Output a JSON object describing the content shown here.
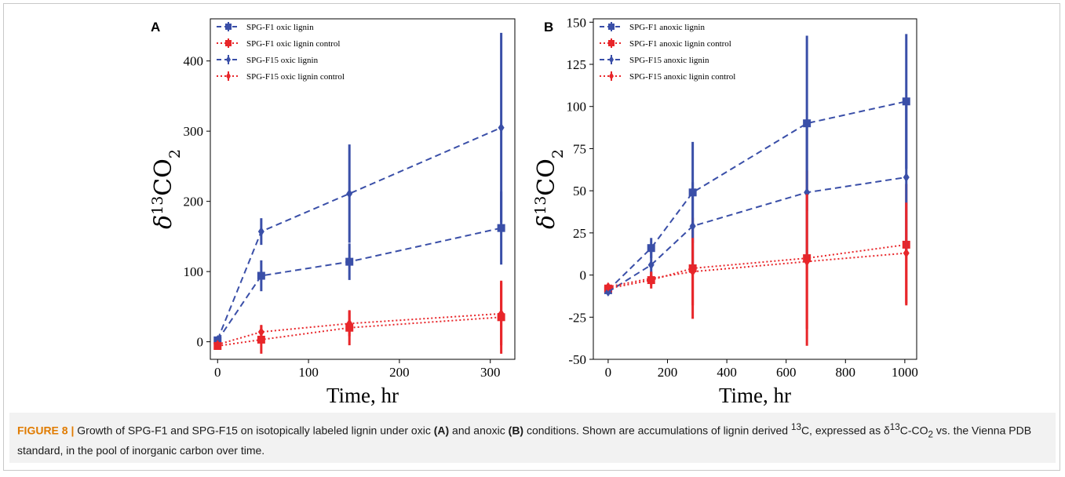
{
  "caption": {
    "label": "FIGURE 8 |",
    "text_1": " Growth of SPG-F1 and SPG-F15 on isotopically labeled lignin under oxic ",
    "bold_a": "(A)",
    "text_2": " and anoxic ",
    "bold_b": "(B)",
    "text_3": " conditions. Shown are accumulations of lignin derived ",
    "sup_13": "13",
    "text_4": "C, expressed as δ",
    "text_5": "C-CO",
    "sub_2": "2",
    "text_6": " vs. the Vienna PDB standard, in the pool of inorganic carbon over time."
  },
  "colors": {
    "blue": "#3a4fa8",
    "red": "#e8262a",
    "caption_accent": "#e07b00"
  },
  "chart_data": [
    {
      "panel_label": "A",
      "type": "line",
      "xlabel": "Time, hr",
      "ylabel": "δ13CO2",
      "xlim": [
        -8,
        327
      ],
      "ylim": [
        -25,
        460
      ],
      "xticks": [
        0,
        100,
        200,
        300
      ],
      "yticks": [
        0,
        100,
        200,
        300,
        400
      ],
      "legend_position": "top-left",
      "series": [
        {
          "name": "SPG-F1 oxic lignin",
          "color": "#3a4fa8",
          "line": "dashed",
          "marker": "square",
          "x": [
            0,
            48,
            145,
            312
          ],
          "y": [
            2,
            94,
            114,
            162
          ],
          "err": [
            4,
            22,
            26,
            52
          ]
        },
        {
          "name": "SPG-F1 oxic lignin control",
          "color": "#e8262a",
          "line": "dotted",
          "marker": "square",
          "x": [
            0,
            48,
            145,
            312
          ],
          "y": [
            -6,
            3,
            20,
            35
          ],
          "err": [
            3,
            20,
            25,
            52
          ]
        },
        {
          "name": "SPG-F15 oxic lignin",
          "color": "#3a4fa8",
          "line": "dashed",
          "marker": "diamond",
          "x": [
            0,
            48,
            145,
            312
          ],
          "y": [
            3,
            157,
            211,
            305
          ],
          "err": [
            3,
            19,
            70,
            135
          ]
        },
        {
          "name": "SPG-F15 oxic lignin control",
          "color": "#e8262a",
          "line": "dotted",
          "marker": "diamond",
          "x": [
            0,
            48,
            145,
            312
          ],
          "y": [
            -4,
            14,
            26,
            40
          ],
          "err": [
            3,
            10,
            18,
            45
          ]
        }
      ]
    },
    {
      "panel_label": "B",
      "type": "line",
      "xlabel": "Time, hr",
      "ylabel": "δ13CO2",
      "xlim": [
        -50,
        1040
      ],
      "ylim": [
        -50,
        152
      ],
      "xticks": [
        0,
        200,
        400,
        600,
        800,
        1000
      ],
      "yticks": [
        -50,
        -25,
        0,
        25,
        50,
        75,
        100,
        125,
        150
      ],
      "legend_position": "top-left",
      "series": [
        {
          "name": "SPG-F1 anoxic lignin",
          "color": "#3a4fa8",
          "line": "dashed",
          "marker": "square",
          "x": [
            0,
            145,
            285,
            670,
            1005
          ],
          "y": [
            -9,
            16,
            49,
            90,
            103
          ],
          "err": [
            2,
            6,
            30,
            52,
            40
          ]
        },
        {
          "name": "SPG-F1 anoxic lignin control",
          "color": "#e8262a",
          "line": "dotted",
          "marker": "square",
          "x": [
            0,
            145,
            285,
            670,
            1005
          ],
          "y": [
            -8,
            -3,
            4,
            10,
            18
          ],
          "err": [
            2,
            5,
            30,
            52,
            36
          ]
        },
        {
          "name": "SPG-F15 anoxic lignin",
          "color": "#3a4fa8",
          "line": "dashed",
          "marker": "diamond",
          "x": [
            0,
            145,
            285,
            670,
            1005
          ],
          "y": [
            -10,
            6,
            29,
            49,
            58
          ],
          "err": [
            2,
            8,
            26,
            40,
            44
          ]
        },
        {
          "name": "SPG-F15 anoxic lignin control",
          "color": "#e8262a",
          "line": "dotted",
          "marker": "diamond",
          "x": [
            0,
            145,
            285,
            670,
            1005
          ],
          "y": [
            -7,
            -2,
            2,
            8,
            13
          ],
          "err": [
            2,
            4,
            20,
            40,
            30
          ]
        }
      ]
    }
  ]
}
